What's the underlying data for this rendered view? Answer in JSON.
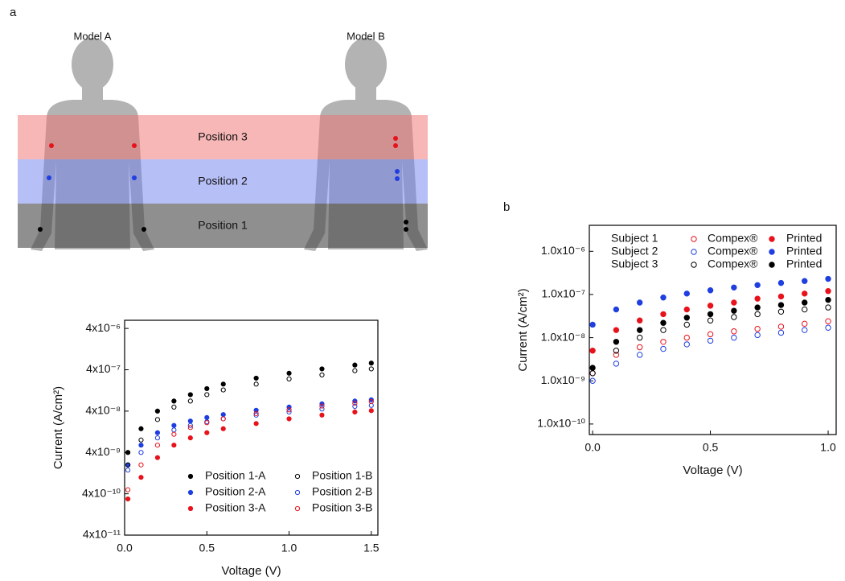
{
  "diagram": {
    "panel_a": "a",
    "panel_b": "b",
    "model_a": "Model A",
    "model_b": "Model B",
    "bands": [
      "Position 3",
      "Position 2",
      "Position 1"
    ]
  },
  "chart_data": [
    {
      "type": "scatter",
      "x_label": "Voltage (V)",
      "y_label": "Current (A/cm²)",
      "log_y": true,
      "x": [
        0.02,
        0.1,
        0.2,
        0.3,
        0.4,
        0.5,
        0.6,
        0.8,
        1.0,
        1.2,
        1.4,
        1.5
      ],
      "xlim": [
        0,
        1.54
      ],
      "xticks": [
        {
          "value": 0,
          "label": "0.0"
        },
        0.5,
        {
          "value": 1,
          "label": "1.0"
        },
        1.5
      ],
      "ylim": [
        4e-11,
        6.3e-06
      ],
      "yticks": [
        {
          "value": 4e-11,
          "label": "4x10⁻¹¹"
        },
        {
          "value": 4e-10,
          "label": "4x10⁻¹⁰"
        },
        {
          "value": 4e-09,
          "label": "4x10⁻⁹"
        },
        {
          "value": 4e-08,
          "label": "4x10⁻⁸"
        },
        {
          "value": 4e-07,
          "label": "4x10⁻⁷"
        },
        {
          "value": 4e-06,
          "label": "4x10⁻⁶"
        }
      ],
      "series": [
        {
          "name": "Position 1-A",
          "color": "#000000",
          "filled": true,
          "values": [
            4e-09,
            1.5e-08,
            4e-08,
            7e-08,
            1e-07,
            1.4e-07,
            1.8e-07,
            2.5e-07,
            3.3e-07,
            4.2e-07,
            5.2e-07,
            5.8e-07
          ]
        },
        {
          "name": "Position 2-A",
          "color": "#1f3fe0",
          "filled": true,
          "values": [
            2e-09,
            6e-09,
            1.2e-08,
            1.8e-08,
            2.3e-08,
            2.8e-08,
            3.3e-08,
            4.2e-08,
            5e-08,
            6e-08,
            7e-08,
            7.5e-08
          ]
        },
        {
          "name": "Position 3-A",
          "color": "#e8121c",
          "filled": true,
          "values": [
            3e-10,
            1e-09,
            3e-09,
            6e-09,
            9e-09,
            1.2e-08,
            1.5e-08,
            2e-08,
            2.6e-08,
            3.2e-08,
            3.8e-08,
            4.1e-08
          ]
        },
        {
          "name": "Position 1-B",
          "color": "#000000",
          "filled": false,
          "values": [
            2e-09,
            8e-09,
            2.5e-08,
            5e-08,
            7e-08,
            1e-07,
            1.3e-07,
            1.8e-07,
            2.4e-07,
            3e-07,
            3.8e-07,
            4.2e-07
          ]
        },
        {
          "name": "Position 2-B",
          "color": "#1f3fe0",
          "filled": false,
          "values": [
            1.5e-09,
            4e-09,
            9e-09,
            1.4e-08,
            1.8e-08,
            2.2e-08,
            2.6e-08,
            3.2e-08,
            3.8e-08,
            4.5e-08,
            5.2e-08,
            5.5e-08
          ]
        },
        {
          "name": "Position 3-B",
          "color": "#e8121c",
          "filled": false,
          "values": [
            5e-10,
            2e-09,
            6e-09,
            1.1e-08,
            1.6e-08,
            2.1e-08,
            2.6e-08,
            3.5e-08,
            4.3e-08,
            5.3e-08,
            6.2e-08,
            6.8e-08
          ]
        }
      ]
    },
    {
      "type": "scatter",
      "x_label": "Voltage (V)",
      "y_label": "Current (A/cm²)",
      "log_y": true,
      "legend_rows": [
        "Subject 1",
        "Subject 2",
        "Subject 3"
      ],
      "x": [
        0.0,
        0.1,
        0.2,
        0.3,
        0.4,
        0.5,
        0.6,
        0.7,
        0.8,
        0.9,
        1.0
      ],
      "xlim": [
        -0.014,
        1.034
      ],
      "xticks": [
        {
          "value": 0,
          "label": "0.0"
        },
        0.5,
        {
          "value": 1,
          "label": "1.0"
        }
      ],
      "ylim": [
        5.7e-11,
        4e-06
      ],
      "yticks": [
        {
          "value": 1e-10,
          "label": "1.0x10⁻¹⁰"
        },
        {
          "value": 1e-09,
          "label": "1.0x10⁻⁹"
        },
        {
          "value": 1e-08,
          "label": "1.0x10⁻⁸"
        },
        {
          "value": 1e-07,
          "label": "1.0x10⁻⁷"
        },
        {
          "value": 1e-06,
          "label": "1.0x10⁻⁶"
        }
      ],
      "series": [
        {
          "name": "Compex®",
          "color": "#e8121c",
          "filled": false,
          "values": [
            1.5e-09,
            4e-09,
            6e-09,
            8e-09,
            1e-08,
            1.2e-08,
            1.4e-08,
            1.6e-08,
            1.8e-08,
            2.1e-08,
            2.4e-08
          ]
        },
        {
          "name": "Compex®",
          "color": "#1f3fe0",
          "filled": false,
          "values": [
            1e-09,
            2.5e-09,
            4e-09,
            5.5e-09,
            7e-09,
            8.5e-09,
            1e-08,
            1.15e-08,
            1.3e-08,
            1.5e-08,
            1.7e-08
          ]
        },
        {
          "name": "Compex®",
          "color": "#000000",
          "filled": false,
          "values": [
            1.5e-09,
            5e-09,
            1e-08,
            1.5e-08,
            2e-08,
            2.5e-08,
            3e-08,
            3.5e-08,
            4e-08,
            4.5e-08,
            5e-08
          ]
        },
        {
          "name": "Printed",
          "color": "#e8121c",
          "filled": true,
          "values": [
            5e-09,
            1.5e-08,
            2.5e-08,
            3.5e-08,
            4.5e-08,
            5.5e-08,
            6.5e-08,
            8e-08,
            9e-08,
            1.05e-07,
            1.2e-07
          ]
        },
        {
          "name": "Printed",
          "color": "#1f3fe0",
          "filled": true,
          "values": [
            2e-08,
            4.5e-08,
            6.5e-08,
            8.5e-08,
            1.05e-07,
            1.25e-07,
            1.45e-07,
            1.65e-07,
            1.85e-07,
            2.05e-07,
            2.3e-07
          ]
        },
        {
          "name": "Printed",
          "color": "#000000",
          "filled": true,
          "values": [
            2e-09,
            8e-09,
            1.5e-08,
            2.2e-08,
            2.9e-08,
            3.5e-08,
            4.2e-08,
            5e-08,
            5.7e-08,
            6.5e-08,
            7.5e-08
          ]
        }
      ]
    }
  ]
}
